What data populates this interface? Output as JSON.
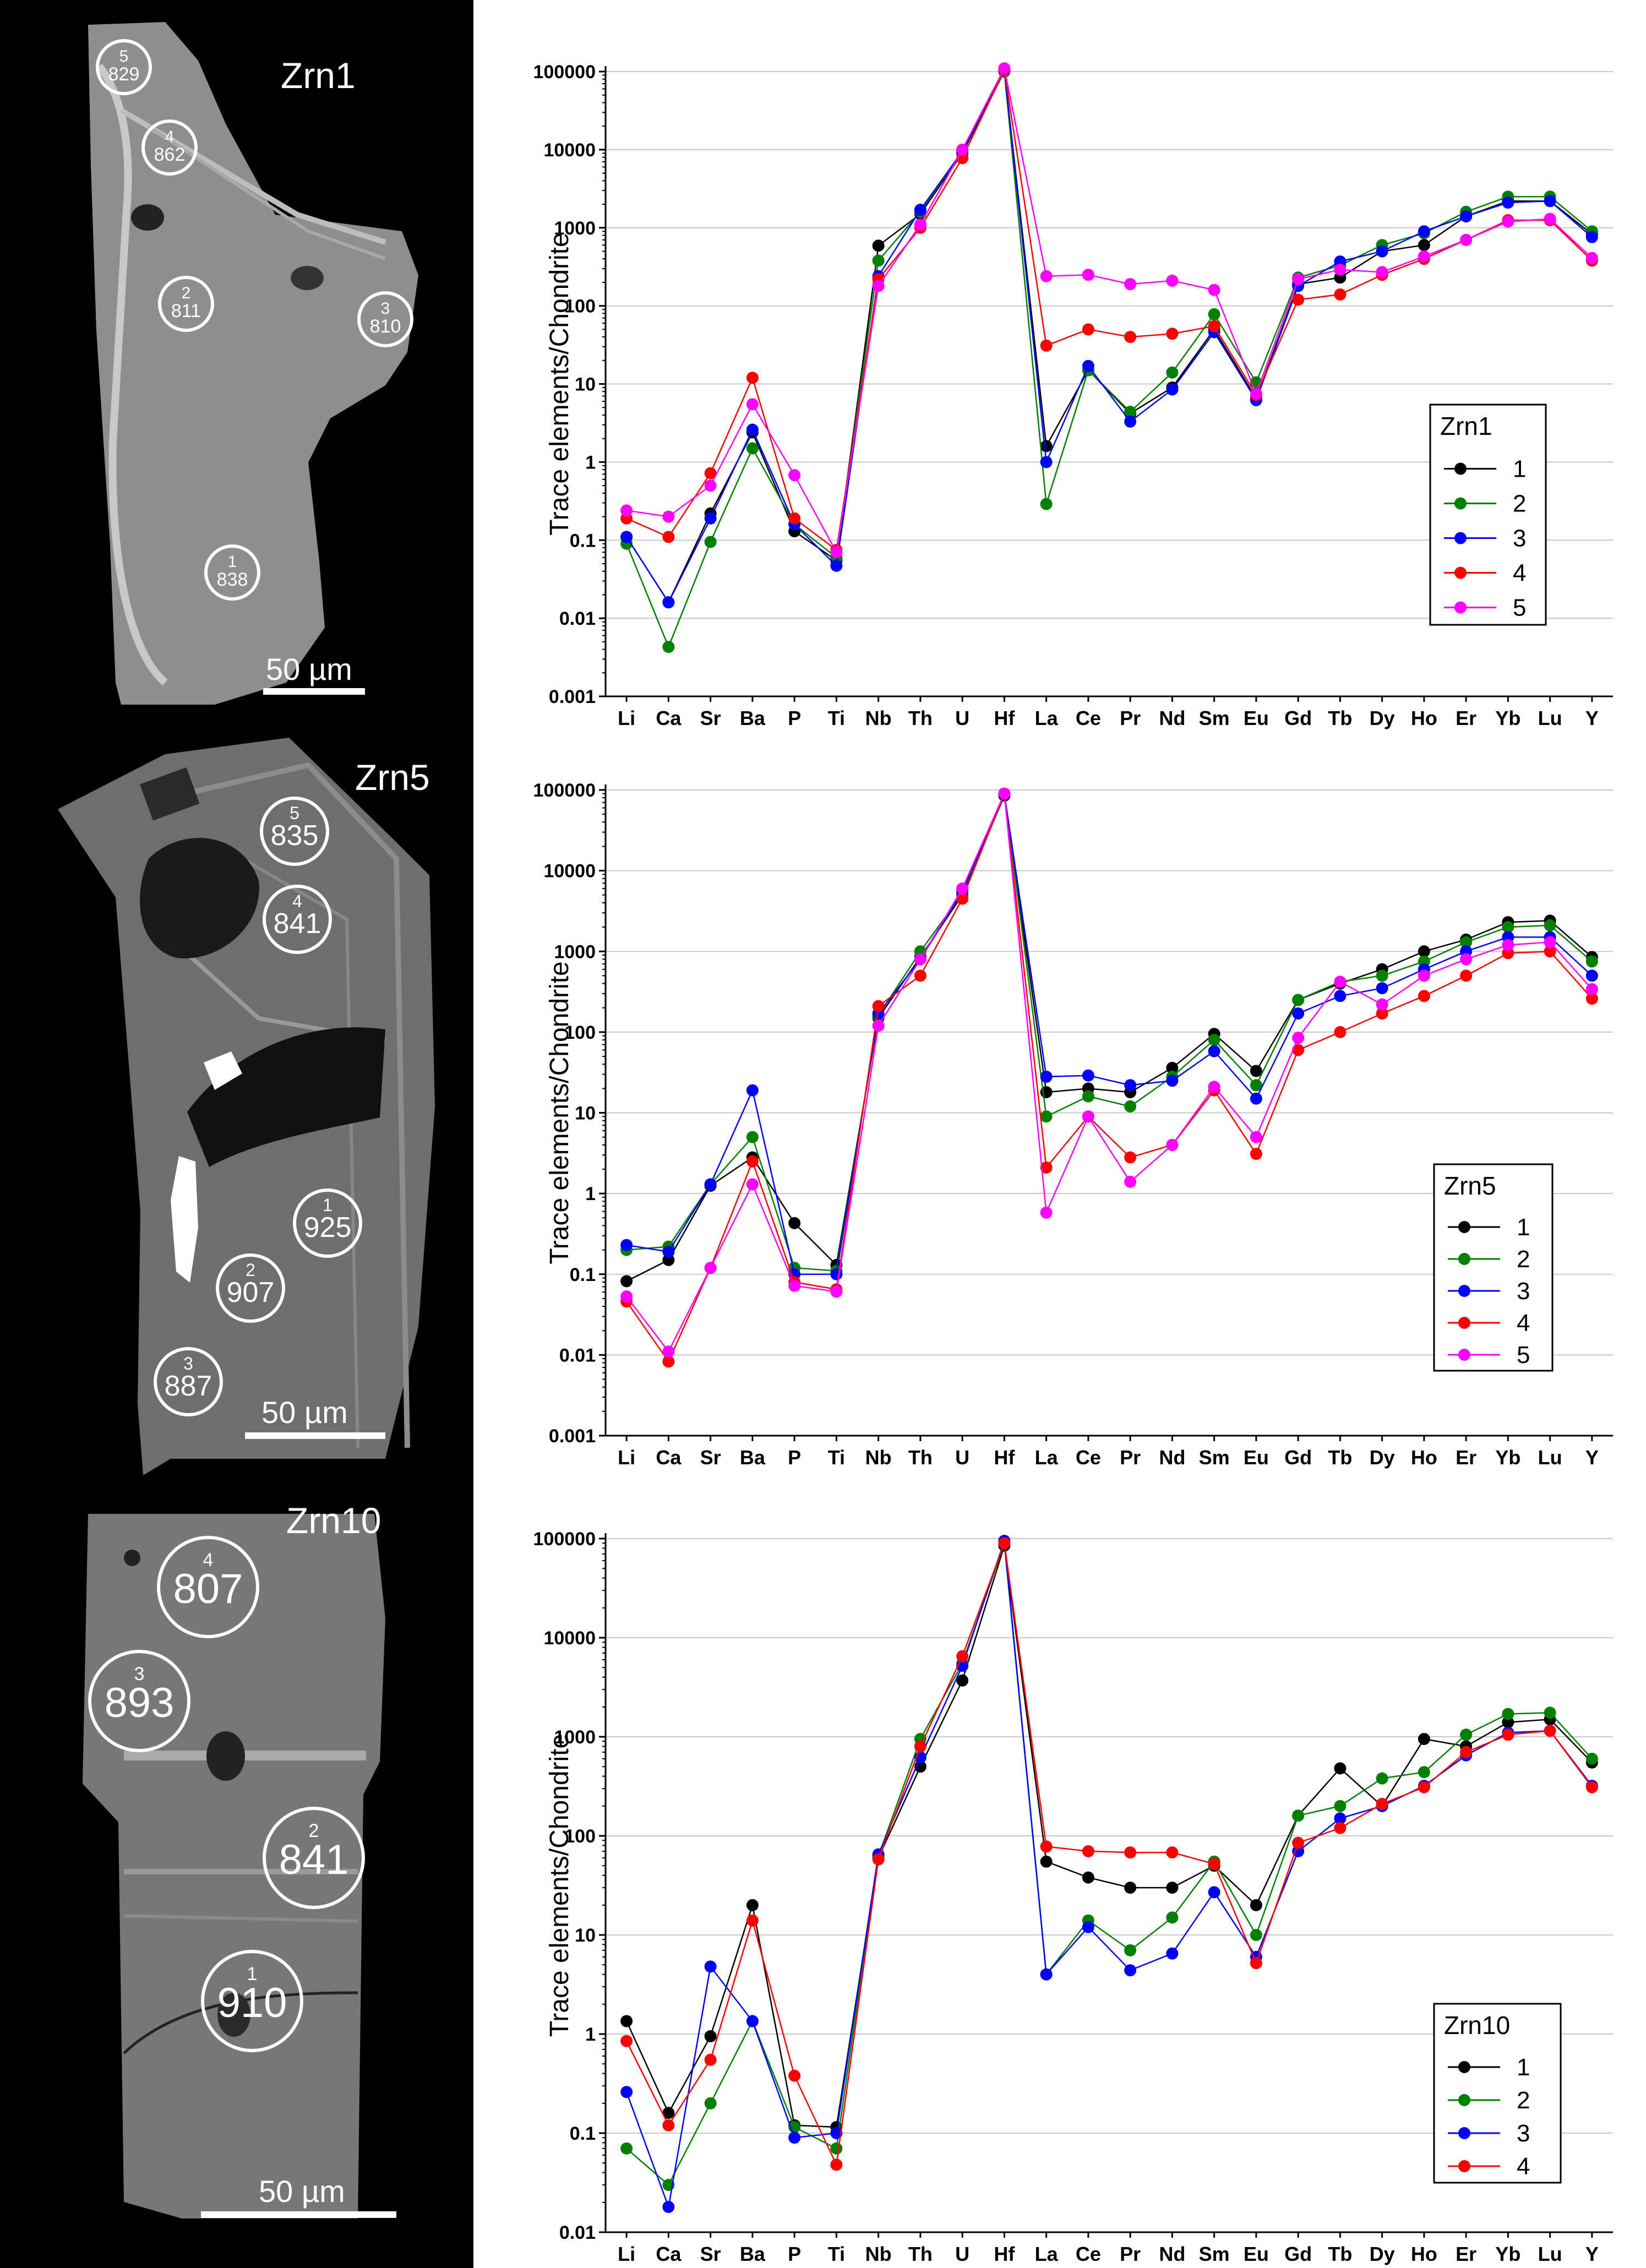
{
  "colors": {
    "s1": "#000000",
    "s2": "#008000",
    "s3": "#0000ff",
    "s4": "#ff0000",
    "s5": "#ff00ff"
  },
  "panels": [
    {
      "grain": "Zrn1",
      "scale_label": "50 µm",
      "spots": [
        {
          "num": "5",
          "age": "829"
        },
        {
          "num": "4",
          "age": "862"
        },
        {
          "num": "2",
          "age": "811"
        },
        {
          "num": "3",
          "age": "810"
        },
        {
          "num": "1",
          "age": "838"
        }
      ]
    },
    {
      "grain": "Zrn5",
      "scale_label": "50 µm",
      "spots": [
        {
          "num": "5",
          "age": "835"
        },
        {
          "num": "4",
          "age": "841"
        },
        {
          "num": "1",
          "age": "925"
        },
        {
          "num": "2",
          "age": "907"
        },
        {
          "num": "3",
          "age": "887"
        }
      ]
    },
    {
      "grain": "Zrn10",
      "scale_label": "50 µm",
      "spots": [
        {
          "num": "4",
          "age": "807"
        },
        {
          "num": "3",
          "age": "893"
        },
        {
          "num": "2",
          "age": "841"
        },
        {
          "num": "1",
          "age": "910"
        }
      ]
    }
  ],
  "chart_data": [
    {
      "type": "line",
      "ylabel": "Trace elements/Chondrite",
      "yscale": "log",
      "ylim": [
        0.001,
        100000
      ],
      "yticks": [
        "0.001",
        "0.01",
        "0.1",
        "1",
        "10",
        "100",
        "1000",
        "10000",
        "100000"
      ],
      "categories": [
        "Li",
        "Ca",
        "Sr",
        "Ba",
        "P",
        "Ti",
        "Nb",
        "Th",
        "U",
        "Hf",
        "La",
        "Ce",
        "Pr",
        "Nd",
        "Sm",
        "Eu",
        "Gd",
        "Tb",
        "Dy",
        "Ho",
        "Er",
        "Yb",
        "Lu",
        "Y"
      ],
      "legend_title": "Zrn1",
      "legend_position": "right",
      "series": [
        {
          "name": "1",
          "values": [
            0.11,
            0.016,
            0.22,
            2.4,
            0.13,
            0.055,
            590,
            1500,
            9000,
            100000,
            1.6,
            15,
            4.2,
            9,
            50,
            6.5,
            190,
            230,
            500,
            600,
            1400,
            2200,
            2200,
            830
          ]
        },
        {
          "name": "2",
          "values": [
            0.09,
            0.0043,
            0.095,
            1.5,
            0.16,
            0.06,
            380,
            1600,
            9500,
            100000,
            0.29,
            15,
            4.4,
            14,
            78,
            10.5,
            230,
            330,
            600,
            850,
            1600,
            2500,
            2500,
            900
          ]
        },
        {
          "name": "3",
          "values": [
            0.11,
            0.016,
            0.19,
            2.6,
            0.16,
            0.047,
            240,
            1700,
            9500,
            105000,
            1.0,
            17,
            3.3,
            8.5,
            46,
            6.2,
            180,
            370,
            500,
            900,
            1400,
            2100,
            2200,
            760
          ]
        },
        {
          "name": "4",
          "values": [
            0.19,
            0.11,
            0.72,
            12,
            0.19,
            0.075,
            220,
            1000,
            7800,
            105000,
            31,
            50,
            40,
            44,
            55,
            7.2,
            120,
            140,
            250,
            400,
            700,
            1250,
            1250,
            380
          ]
        },
        {
          "name": "5",
          "values": [
            0.24,
            0.2,
            0.5,
            5.5,
            0.68,
            0.07,
            180,
            1100,
            10000,
            110000,
            240,
            250,
            190,
            210,
            160,
            7.5,
            220,
            290,
            270,
            430,
            700,
            1200,
            1300,
            410
          ]
        }
      ]
    },
    {
      "type": "line",
      "ylabel": "Trace elements/Chondrite",
      "yscale": "log",
      "ylim": [
        0.001,
        100000
      ],
      "yticks": [
        "0.001",
        "0.01",
        "0.1",
        "1",
        "10",
        "100",
        "1000",
        "10000",
        "100000"
      ],
      "categories": [
        "Li",
        "Ca",
        "Sr",
        "Ba",
        "P",
        "Ti",
        "Nb",
        "Th",
        "U",
        "Hf",
        "La",
        "Ce",
        "Pr",
        "Nd",
        "Sm",
        "Eu",
        "Gd",
        "Tb",
        "Dy",
        "Ho",
        "Er",
        "Yb",
        "Lu",
        "Y"
      ],
      "legend_title": "Zrn5",
      "legend_position": "right",
      "series": [
        {
          "name": "1",
          "values": [
            0.082,
            0.15,
            1.25,
            2.8,
            0.43,
            0.13,
            150,
            850,
            5000,
            85000,
            18,
            20,
            18,
            36,
            95,
            33,
            250,
            400,
            600,
            1000,
            1400,
            2300,
            2400,
            850
          ]
        },
        {
          "name": "2",
          "values": [
            0.2,
            0.22,
            1.3,
            5,
            0.12,
            0.11,
            160,
            1000,
            5200,
            90000,
            9,
            16,
            12,
            28,
            80,
            22,
            250,
            420,
            500,
            750,
            1300,
            2000,
            2100,
            750
          ]
        },
        {
          "name": "3",
          "values": [
            0.23,
            0.19,
            1.3,
            19,
            0.1,
            0.1,
            170,
            800,
            5500,
            90000,
            28,
            29,
            22,
            25,
            58,
            15,
            170,
            280,
            350,
            600,
            1000,
            1500,
            1500,
            500
          ]
        },
        {
          "name": "4",
          "values": [
            0.046,
            0.0083,
            0.12,
            2.5,
            0.08,
            0.065,
            210,
            500,
            4500,
            90000,
            2.1,
            9,
            2.8,
            4,
            19,
            3.1,
            60,
            100,
            170,
            280,
            500,
            950,
            1000,
            260
          ]
        },
        {
          "name": "5",
          "values": [
            0.053,
            0.011,
            0.12,
            1.3,
            0.072,
            0.061,
            120,
            800,
            6000,
            90000,
            0.58,
            9,
            1.4,
            4,
            21,
            5,
            85,
            420,
            220,
            500,
            800,
            1200,
            1300,
            340
          ]
        }
      ]
    },
    {
      "type": "line",
      "ylabel": "Trace elements/Chondrite",
      "yscale": "log",
      "ylim": [
        0.01,
        100000
      ],
      "yticks": [
        "0.01",
        "0.1",
        "1",
        "10",
        "100",
        "1000",
        "10000",
        "100000"
      ],
      "categories": [
        "Li",
        "Ca",
        "Sr",
        "Ba",
        "P",
        "Ti",
        "Nb",
        "Th",
        "U",
        "Hf",
        "La",
        "Ce",
        "Pr",
        "Nd",
        "Sm",
        "Eu",
        "Gd",
        "Tb",
        "Dy",
        "Ho",
        "Er",
        "Yb",
        "Lu",
        "Y"
      ],
      "legend_title": "Zrn10",
      "legend_position": "right",
      "series": [
        {
          "name": "1",
          "values": [
            1.35,
            0.16,
            0.95,
            20,
            0.12,
            0.115,
            60,
            500,
            3700,
            85000,
            55,
            38,
            30,
            30,
            50,
            20,
            160,
            480,
            200,
            950,
            800,
            1400,
            1500,
            550
          ]
        },
        {
          "name": "2",
          "values": [
            0.07,
            0.03,
            0.2,
            1.35,
            0.115,
            0.07,
            62,
            950,
            5500,
            90000,
            4,
            14,
            7,
            15,
            55,
            10,
            160,
            200,
            380,
            440,
            1050,
            1700,
            1750,
            600
          ]
        },
        {
          "name": "3",
          "values": [
            0.26,
            0.018,
            4.8,
            1.35,
            0.09,
            0.1,
            65,
            620,
            5200,
            95000,
            4,
            12,
            4.4,
            6.5,
            27,
            6,
            70,
            150,
            200,
            320,
            650,
            1100,
            1150,
            320
          ]
        },
        {
          "name": "4",
          "values": [
            0.85,
            0.12,
            0.55,
            14,
            0.38,
            0.048,
            58,
            800,
            6500,
            90000,
            78,
            70,
            68,
            68,
            52,
            5.2,
            85,
            120,
            210,
            310,
            700,
            1050,
            1150,
            310
          ]
        }
      ]
    }
  ]
}
